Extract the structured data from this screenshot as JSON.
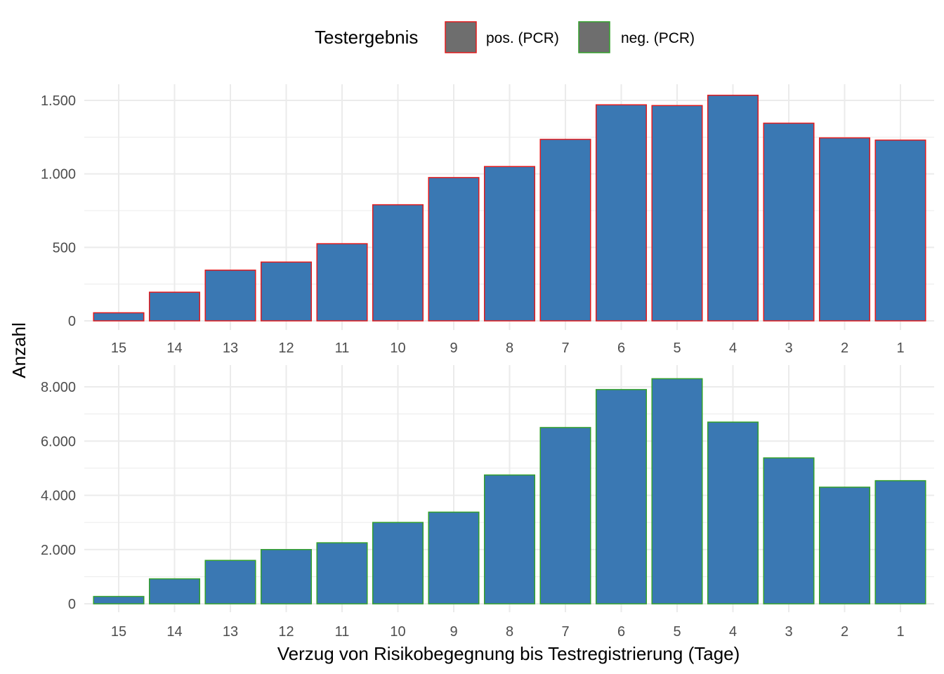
{
  "legend": {
    "title": "Testergebnis",
    "items": [
      {
        "label": "pos. (PCR)",
        "outline": "#e41a1c"
      },
      {
        "label": "neg. (PCR)",
        "outline": "#33a02c"
      }
    ],
    "key_fill": "#6e6e6e"
  },
  "colors": {
    "bar_fill": "#3a78b3",
    "grid": "#ebebeb"
  },
  "chart_data": [
    {
      "type": "bar",
      "panel": "pos. (PCR)",
      "categories": [
        "15",
        "14",
        "13",
        "12",
        "11",
        "10",
        "9",
        "8",
        "7",
        "6",
        "5",
        "4",
        "3",
        "2",
        "1"
      ],
      "values": [
        55,
        195,
        345,
        400,
        525,
        790,
        975,
        1050,
        1235,
        1470,
        1465,
        1535,
        1345,
        1245,
        1230
      ],
      "ylim": [
        0,
        1500
      ],
      "yticks": [
        0,
        500,
        1000,
        1500
      ],
      "ytick_labels": [
        "0",
        "500",
        "1.000",
        "1.500"
      ],
      "outline": "#e41a1c"
    },
    {
      "type": "bar",
      "panel": "neg. (PCR)",
      "categories": [
        "15",
        "14",
        "13",
        "12",
        "11",
        "10",
        "9",
        "8",
        "7",
        "6",
        "5",
        "4",
        "3",
        "2",
        "1"
      ],
      "values": [
        270,
        920,
        1600,
        2000,
        2250,
        3000,
        3380,
        4750,
        6500,
        7900,
        8300,
        6700,
        5380,
        4300,
        4540
      ],
      "ylim": [
        0,
        8000
      ],
      "yticks": [
        0,
        2000,
        4000,
        6000,
        8000
      ],
      "ytick_labels": [
        "0",
        "2.000",
        "4.000",
        "6.000",
        "8.000"
      ],
      "outline": "#33a02c"
    }
  ],
  "axes": {
    "xlabel": "Verzug von Risikobegegnung bis Testregistrierung (Tage)",
    "ylabel": "Anzahl"
  }
}
